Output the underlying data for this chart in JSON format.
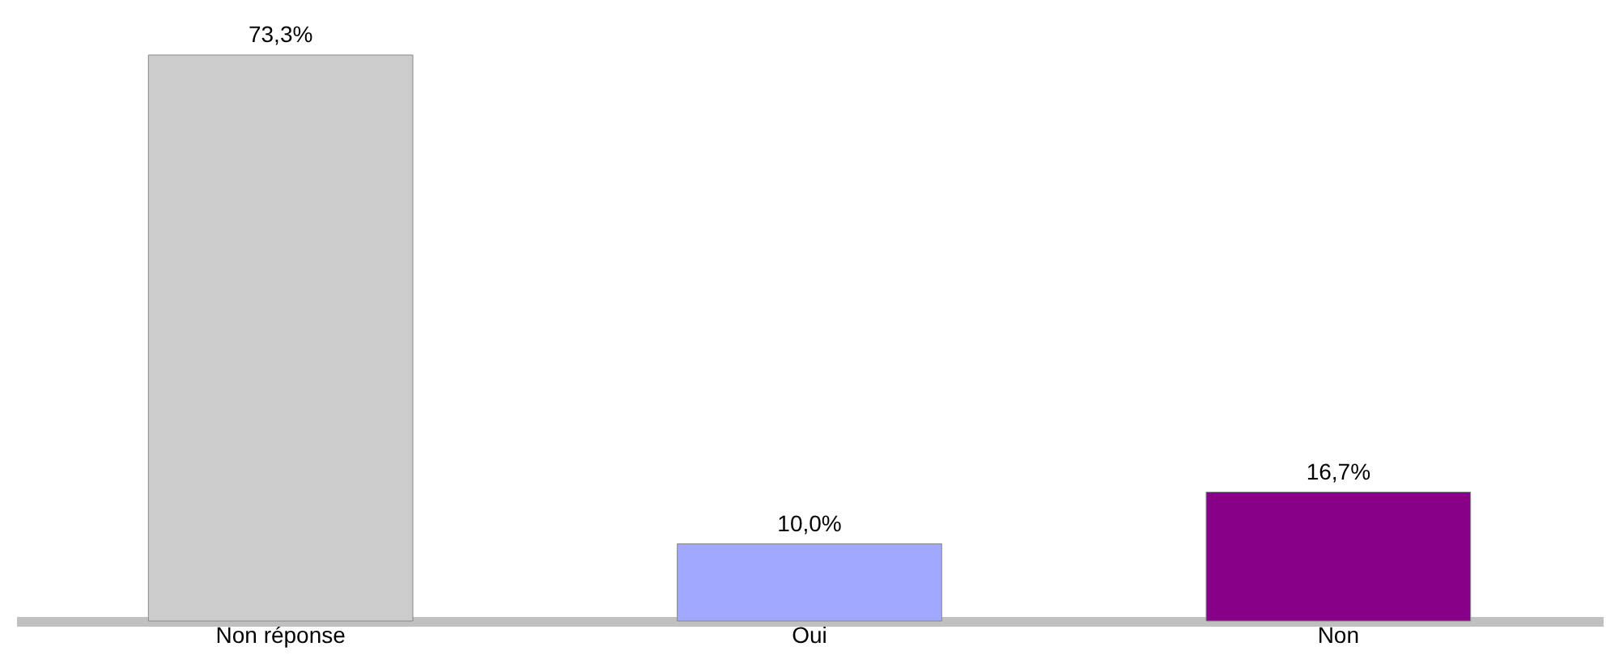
{
  "chart_data": {
    "type": "bar",
    "categories": [
      "Non réponse",
      "Oui",
      "Non"
    ],
    "values": [
      73.3,
      10.0,
      16.7
    ],
    "colors": [
      "#cccccc",
      "#a0a8ff",
      "#880088"
    ],
    "value_labels": [
      "73,3%",
      "10,0%",
      "16,7%"
    ],
    "grid": false,
    "legend": false
  }
}
